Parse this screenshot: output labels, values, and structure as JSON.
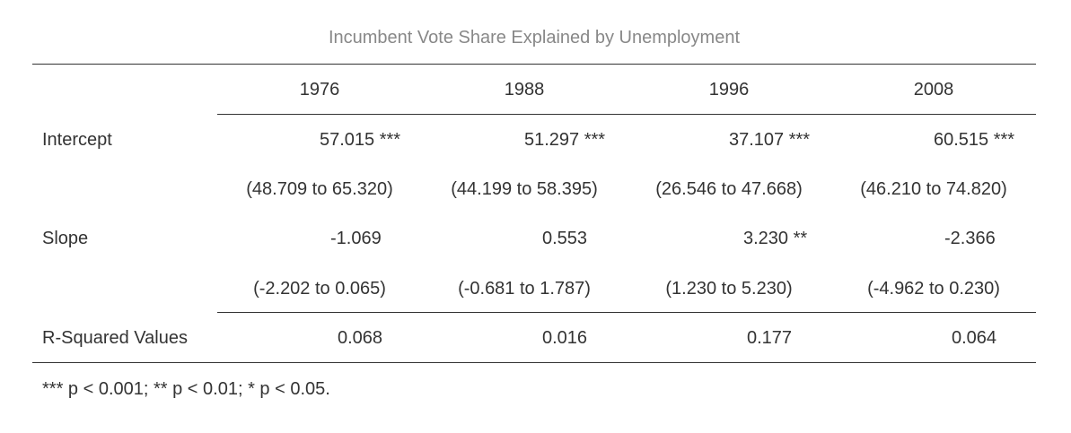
{
  "table": {
    "title": "Incumbent Vote Share Explained by Unemployment",
    "columns": [
      "1976",
      "1988",
      "1996",
      "2008"
    ],
    "rows": {
      "intercept": {
        "label": "Intercept",
        "estimates": [
          "57.015 ***",
          "51.297 ***",
          "37.107 ***",
          "60.515 ***"
        ],
        "intervals": [
          "(48.709 to 65.320)",
          "(44.199 to 58.395)",
          "(26.546 to 47.668)",
          "(46.210 to 74.820)"
        ]
      },
      "slope": {
        "label": "Slope",
        "estimates": [
          "-1.069",
          "0.553",
          "3.230 **",
          "-2.366"
        ],
        "intervals": [
          "(-2.202 to 0.065)",
          "(-0.681 to 1.787)",
          "(1.230 to 5.230)",
          "(-4.962 to 0.230)"
        ]
      },
      "r_squared": {
        "label": "R-Squared Values",
        "values": [
          "0.068",
          "0.016",
          "0.177",
          "0.064"
        ]
      }
    },
    "footnote": "*** p < 0.001; ** p < 0.01; * p < 0.05."
  }
}
